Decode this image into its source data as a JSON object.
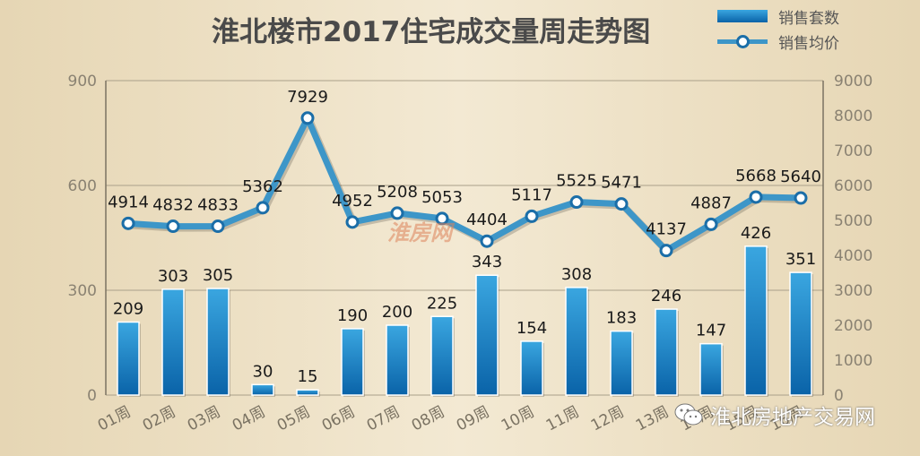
{
  "title": "淮北楼市2017住宅成交量周走势图",
  "legend": {
    "bar_label": "销售套数",
    "line_label": "销售均价"
  },
  "watermark": "淮房网",
  "source": "淮北房地产交易网",
  "colors": {
    "background": "#ede0c4",
    "bar_top": "#3aa6e0",
    "bar_bottom": "#0a63a8",
    "line": "#3d96c8",
    "grid": "#aaa08a"
  },
  "chart_data": {
    "type": "bar",
    "title": "淮北楼市2017住宅成交量周走势图",
    "categories": [
      "01周",
      "02周",
      "03周",
      "04周",
      "05周",
      "06周",
      "07周",
      "08周",
      "09周",
      "10周",
      "11周",
      "12周",
      "13周",
      "14周",
      "15周",
      "16周"
    ],
    "series": [
      {
        "name": "销售套数",
        "type": "bar",
        "axis": "left",
        "values": [
          209,
          303,
          305,
          30,
          15,
          190,
          200,
          225,
          343,
          154,
          308,
          183,
          246,
          147,
          426,
          351
        ]
      },
      {
        "name": "销售均价",
        "type": "line",
        "axis": "right",
        "values": [
          4914,
          4832,
          4833,
          5362,
          7929,
          4952,
          5208,
          5053,
          4404,
          5117,
          5525,
          5471,
          4137,
          4887,
          5668,
          5640
        ]
      }
    ],
    "y_left": {
      "ticks": [
        0,
        300,
        600,
        900
      ],
      "range": [
        0,
        900
      ]
    },
    "y_right": {
      "ticks": [
        0,
        1000,
        2000,
        3000,
        4000,
        5000,
        6000,
        7000,
        8000,
        9000
      ],
      "range": [
        0,
        9000
      ]
    },
    "grid": true,
    "legend_position": "top-right"
  }
}
